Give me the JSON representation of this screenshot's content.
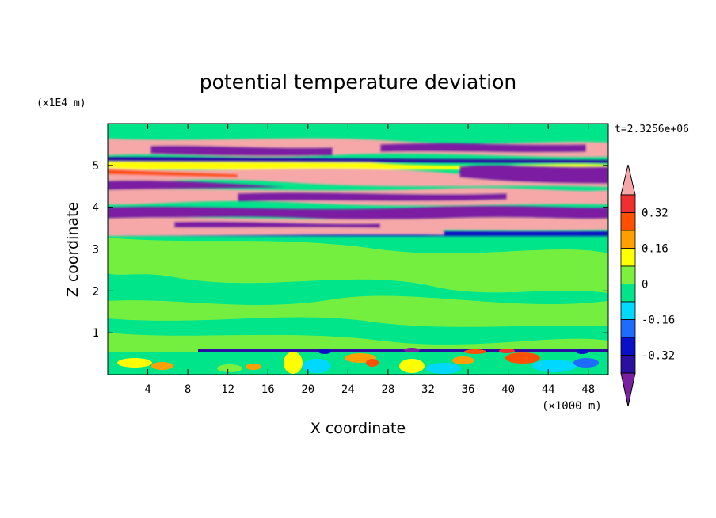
{
  "chart_data": {
    "type": "heatmap",
    "title": "potential temperature deviation",
    "xlabel": "X coordinate",
    "ylabel": "Z coordinate",
    "x_unit": "(×1000 m)",
    "y_unit": "(x1E4 m)",
    "time_label": "t=2.3256e+06",
    "xlim": [
      0,
      50
    ],
    "ylim": [
      0,
      6
    ],
    "x_ticks": [
      4,
      8,
      12,
      16,
      20,
      24,
      28,
      32,
      36,
      40,
      44,
      48
    ],
    "y_ticks": [
      1,
      2,
      3,
      4,
      5
    ],
    "colorbar": {
      "levels": [
        -0.4,
        -0.32,
        -0.24,
        -0.16,
        -0.08,
        0,
        0.08,
        0.16,
        0.24,
        0.32,
        0.4
      ],
      "tick_labels": [
        "0.32",
        "0.16",
        "0",
        "-0.16",
        "-0.32"
      ],
      "colors": [
        "#7b1fa2",
        "#2b0fa0",
        "#0a10c8",
        "#1e6bff",
        "#00d8ff",
        "#00e58a",
        "#7cf03c",
        "#ffff00",
        "#ffa000",
        "#ff5000",
        "#f03030",
        "#f6a8a8"
      ],
      "extend": "both"
    },
    "layers": [
      {
        "z_range": [
          0,
          0.6
        ],
        "value": "mixed",
        "note": "low-level turbulent cells"
      },
      {
        "z_range": [
          0.6,
          3.3
        ],
        "value": 0
      },
      {
        "z_range": [
          3.3,
          4.6
        ],
        "value": "alternating"
      },
      {
        "z_range": [
          4.6,
          6.0
        ],
        "value": "alternating"
      }
    ]
  }
}
